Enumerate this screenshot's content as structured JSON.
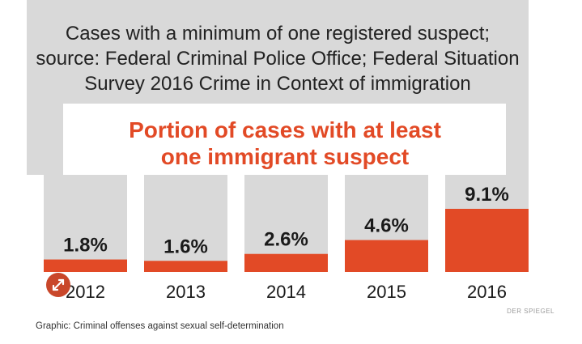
{
  "chart_data": {
    "type": "bar",
    "subtitle_lines": [
      "Cases with a minimum of one registered suspect;",
      "source: Federal Criminal Police Office; Federal Situation",
      "Survey 2016 Crime in Context of immigration"
    ],
    "title_lines": [
      "Portion of cases with at least",
      "one immigrant suspect"
    ],
    "categories": [
      "2012",
      "2013",
      "2014",
      "2015",
      "2016"
    ],
    "values": [
      1.8,
      1.6,
      2.6,
      4.6,
      9.1
    ],
    "value_labels": [
      "1.8%",
      "1.6%",
      "2.6%",
      "4.6%",
      "9.1%"
    ],
    "ylim": [
      0,
      14
    ],
    "unit": "%",
    "grid": false,
    "legend": "none",
    "colors": {
      "bar": "#e24a26",
      "panel": "#d9d9d9",
      "title": "#e24a26"
    }
  },
  "credit": "DER SPIEGEL",
  "caption": "Graphic: Criminal offenses against sexual self-determination",
  "icons": {
    "expand": "expand-arrows-icon"
  }
}
